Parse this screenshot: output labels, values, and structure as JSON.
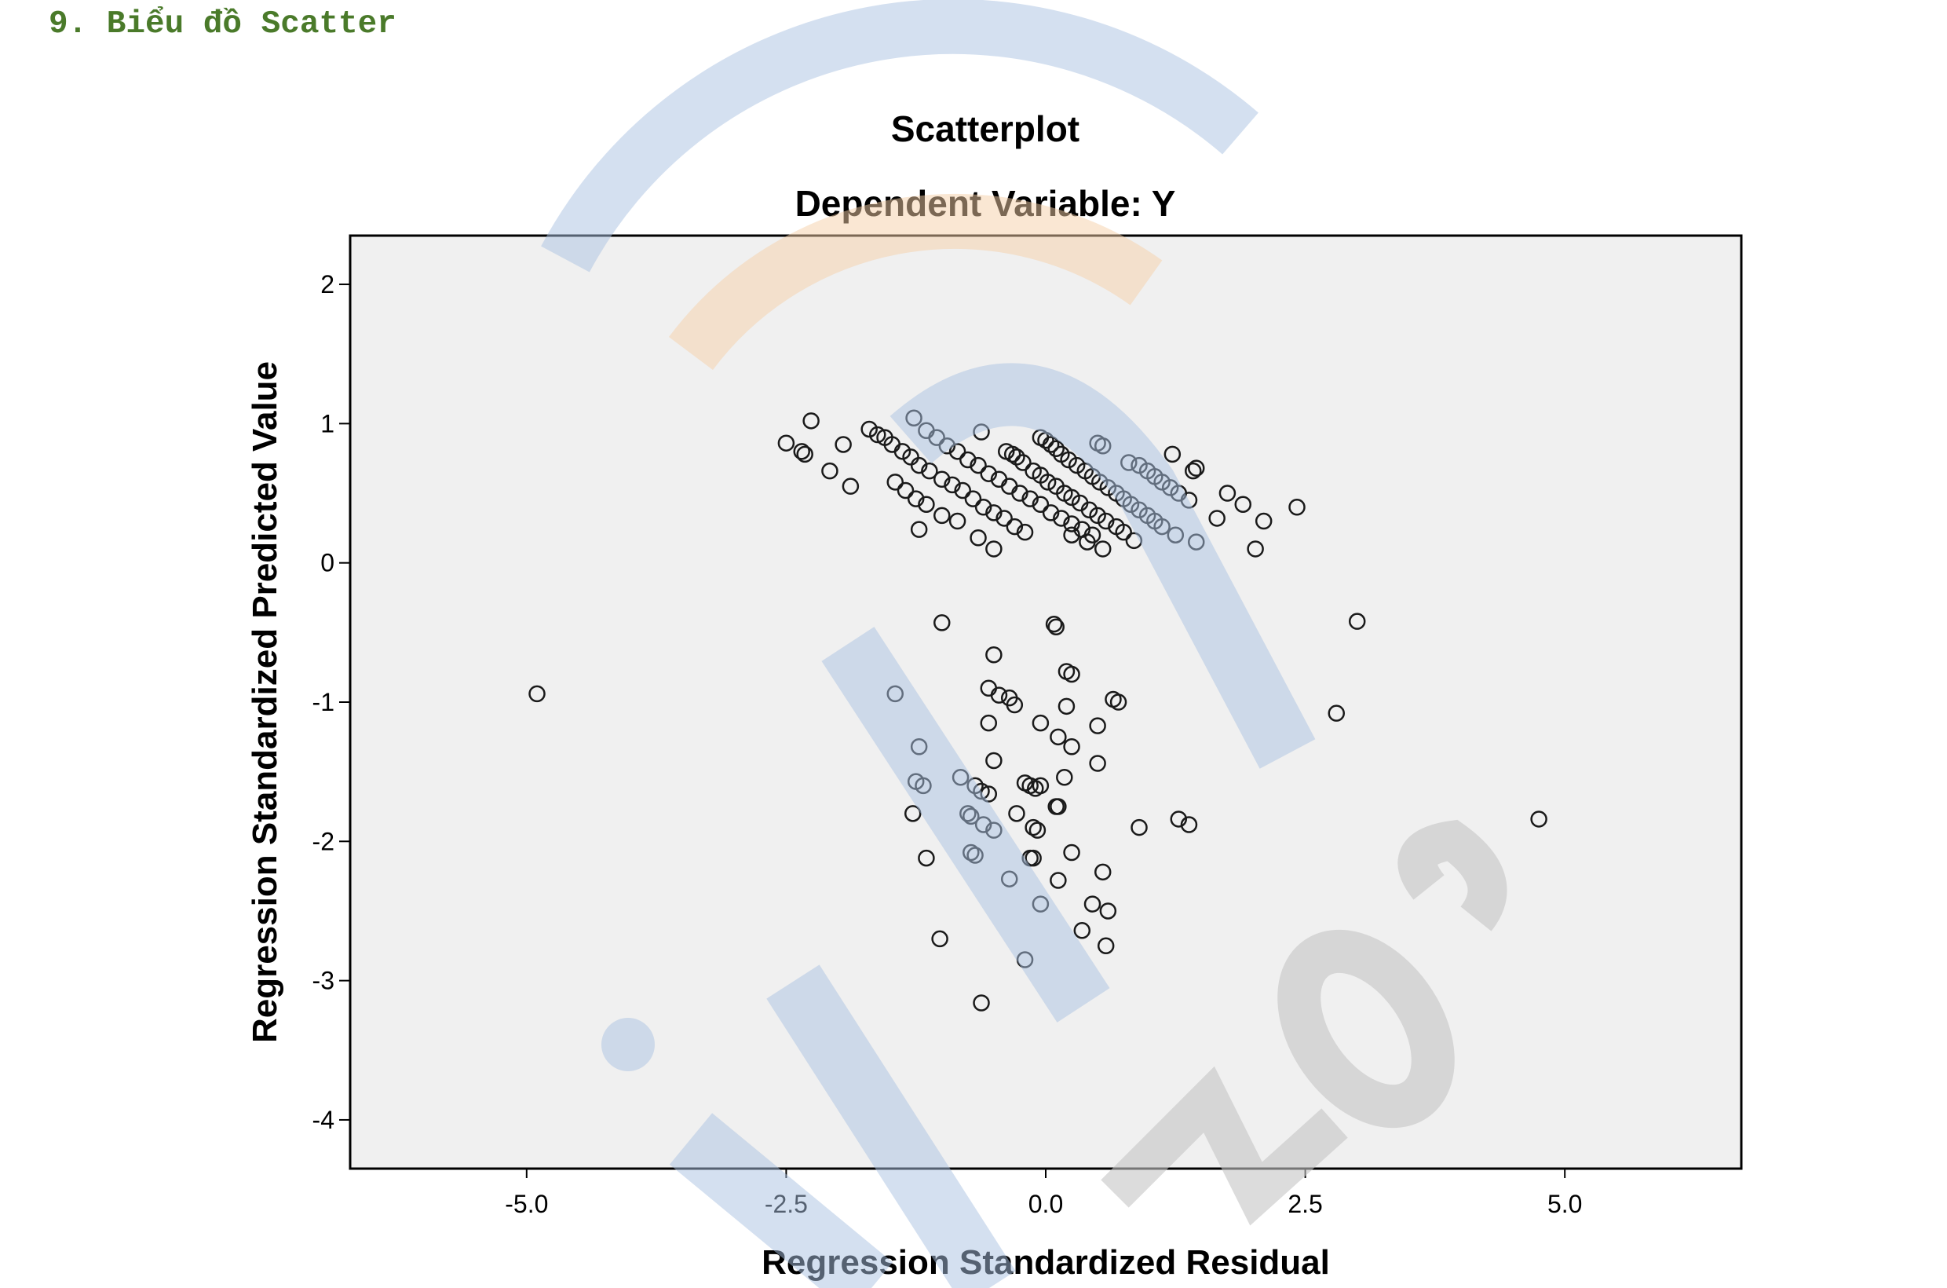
{
  "heading": "9. Biểu đồ Scatter",
  "chart_data": {
    "type": "scatter",
    "title": "Scatterplot",
    "subtitle": "Dependent Variable: Y",
    "xlabel": "Regression Standardized Residual",
    "ylabel": "Regression Standardized Predicted Value",
    "xlim": [
      -6.7,
      6.7
    ],
    "ylim": [
      -4.35,
      2.35
    ],
    "x_ticks": [
      -5.0,
      -2.5,
      0.0,
      2.5,
      5.0
    ],
    "x_tick_labels": [
      "-5.0",
      "-2.5",
      "0.0",
      "2.5",
      "5.0"
    ],
    "y_ticks": [
      2,
      1,
      0,
      -1,
      -2,
      -3,
      -4
    ],
    "y_tick_labels": [
      "2",
      "1",
      "0",
      "-1",
      "-2",
      "-3",
      "-4"
    ],
    "grid": false,
    "legend": "none",
    "plot_background": "#f0f0f0",
    "marker_color": "#1a1a1a",
    "points": [
      [
        -2.26,
        1.02
      ],
      [
        -2.5,
        0.86
      ],
      [
        -2.35,
        0.8
      ],
      [
        -2.08,
        0.66
      ],
      [
        -1.88,
        0.55
      ],
      [
        -1.95,
        0.85
      ],
      [
        -2.32,
        0.78
      ],
      [
        -1.7,
        0.96
      ],
      [
        -1.62,
        0.92
      ],
      [
        -1.55,
        0.9
      ],
      [
        -1.48,
        0.85
      ],
      [
        -1.38,
        0.8
      ],
      [
        -1.3,
        0.76
      ],
      [
        -1.22,
        0.7
      ],
      [
        -1.12,
        0.66
      ],
      [
        -1.0,
        0.6
      ],
      [
        -0.9,
        0.56
      ],
      [
        -0.8,
        0.52
      ],
      [
        -0.7,
        0.46
      ],
      [
        -0.6,
        0.4
      ],
      [
        -0.5,
        0.36
      ],
      [
        -0.4,
        0.32
      ],
      [
        -0.3,
        0.26
      ],
      [
        -0.2,
        0.22
      ],
      [
        -1.27,
        1.04
      ],
      [
        -1.15,
        0.95
      ],
      [
        -1.05,
        0.9
      ],
      [
        -0.95,
        0.84
      ],
      [
        -0.85,
        0.8
      ],
      [
        -0.75,
        0.74
      ],
      [
        -0.65,
        0.7
      ],
      [
        -0.55,
        0.64
      ],
      [
        -0.45,
        0.6
      ],
      [
        -0.35,
        0.55
      ],
      [
        -0.25,
        0.5
      ],
      [
        -0.15,
        0.46
      ],
      [
        -0.05,
        0.42
      ],
      [
        0.05,
        0.36
      ],
      [
        0.15,
        0.32
      ],
      [
        0.25,
        0.28
      ],
      [
        0.35,
        0.24
      ],
      [
        0.45,
        0.2
      ],
      [
        -1.45,
        0.58
      ],
      [
        -1.35,
        0.52
      ],
      [
        -1.25,
        0.46
      ],
      [
        -1.22,
        0.24
      ],
      [
        -1.15,
        0.42
      ],
      [
        -1.0,
        0.34
      ],
      [
        -0.85,
        0.3
      ],
      [
        -0.65,
        0.18
      ],
      [
        -0.5,
        0.1
      ],
      [
        -0.62,
        0.94
      ],
      [
        -0.38,
        0.8
      ],
      [
        -0.32,
        0.78
      ],
      [
        -0.28,
        0.76
      ],
      [
        -0.22,
        0.72
      ],
      [
        -0.12,
        0.66
      ],
      [
        -0.05,
        0.63
      ],
      [
        0.02,
        0.58
      ],
      [
        0.1,
        0.55
      ],
      [
        0.18,
        0.5
      ],
      [
        0.25,
        0.47
      ],
      [
        0.33,
        0.43
      ],
      [
        0.42,
        0.38
      ],
      [
        0.5,
        0.34
      ],
      [
        0.58,
        0.3
      ],
      [
        0.68,
        0.26
      ],
      [
        0.75,
        0.22
      ],
      [
        0.85,
        0.16
      ],
      [
        -0.05,
        0.9
      ],
      [
        0.0,
        0.88
      ],
      [
        0.05,
        0.85
      ],
      [
        0.1,
        0.82
      ],
      [
        0.15,
        0.78
      ],
      [
        0.22,
        0.74
      ],
      [
        0.3,
        0.7
      ],
      [
        0.38,
        0.66
      ],
      [
        0.45,
        0.62
      ],
      [
        0.52,
        0.58
      ],
      [
        0.6,
        0.54
      ],
      [
        0.68,
        0.5
      ],
      [
        0.75,
        0.46
      ],
      [
        0.82,
        0.42
      ],
      [
        0.9,
        0.38
      ],
      [
        0.98,
        0.34
      ],
      [
        1.05,
        0.3
      ],
      [
        1.12,
        0.26
      ],
      [
        1.25,
        0.2
      ],
      [
        1.45,
        0.15
      ],
      [
        0.5,
        0.86
      ],
      [
        0.55,
        0.84
      ],
      [
        0.8,
        0.72
      ],
      [
        0.9,
        0.7
      ],
      [
        0.98,
        0.66
      ],
      [
        1.05,
        0.62
      ],
      [
        1.12,
        0.58
      ],
      [
        1.2,
        0.54
      ],
      [
        1.28,
        0.5
      ],
      [
        1.38,
        0.45
      ],
      [
        1.45,
        0.68
      ],
      [
        1.42,
        0.66
      ],
      [
        1.22,
        0.78
      ],
      [
        1.65,
        0.32
      ],
      [
        1.75,
        0.5
      ],
      [
        1.9,
        0.42
      ],
      [
        2.1,
        0.3
      ],
      [
        2.42,
        0.4
      ],
      [
        2.02,
        0.1
      ],
      [
        0.55,
        0.1
      ],
      [
        0.4,
        0.15
      ],
      [
        0.25,
        0.2
      ],
      [
        -4.9,
        -0.94
      ],
      [
        3.0,
        -0.42
      ],
      [
        2.8,
        -1.08
      ],
      [
        4.75,
        -1.84
      ],
      [
        -1.0,
        -0.43
      ],
      [
        0.08,
        -0.44
      ],
      [
        0.1,
        -0.46
      ],
      [
        -0.5,
        -0.66
      ],
      [
        -1.45,
        -0.94
      ],
      [
        -0.55,
        -0.9
      ],
      [
        -0.45,
        -0.95
      ],
      [
        -0.35,
        -0.97
      ],
      [
        -0.3,
        -1.02
      ],
      [
        0.2,
        -0.78
      ],
      [
        0.25,
        -0.8
      ],
      [
        0.65,
        -0.98
      ],
      [
        0.7,
        -1.0
      ],
      [
        0.2,
        -1.03
      ],
      [
        -0.55,
        -1.15
      ],
      [
        -0.05,
        -1.15
      ],
      [
        0.12,
        -1.25
      ],
      [
        0.25,
        -1.32
      ],
      [
        0.5,
        -1.17
      ],
      [
        -1.22,
        -1.32
      ],
      [
        -0.5,
        -1.42
      ],
      [
        0.5,
        -1.44
      ],
      [
        -1.25,
        -1.57
      ],
      [
        -1.18,
        -1.6
      ],
      [
        -0.82,
        -1.54
      ],
      [
        -0.68,
        -1.6
      ],
      [
        -0.62,
        -1.64
      ],
      [
        -0.55,
        -1.66
      ],
      [
        -0.2,
        -1.58
      ],
      [
        -0.15,
        -1.6
      ],
      [
        -0.1,
        -1.62
      ],
      [
        0.18,
        -1.54
      ],
      [
        -0.05,
        -1.6
      ],
      [
        -1.28,
        -1.8
      ],
      [
        -0.75,
        -1.8
      ],
      [
        -0.72,
        -1.82
      ],
      [
        -0.6,
        -1.88
      ],
      [
        -0.5,
        -1.92
      ],
      [
        -0.28,
        -1.8
      ],
      [
        -0.12,
        -1.9
      ],
      [
        -0.08,
        -1.92
      ],
      [
        0.1,
        -1.75
      ],
      [
        0.12,
        -1.75
      ],
      [
        0.9,
        -1.9
      ],
      [
        1.28,
        -1.84
      ],
      [
        1.38,
        -1.88
      ],
      [
        -1.15,
        -2.12
      ],
      [
        -0.72,
        -2.08
      ],
      [
        -0.68,
        -2.1
      ],
      [
        -0.15,
        -2.12
      ],
      [
        -0.12,
        -2.12
      ],
      [
        0.25,
        -2.08
      ],
      [
        0.55,
        -2.22
      ],
      [
        -0.35,
        -2.27
      ],
      [
        0.12,
        -2.28
      ],
      [
        -0.05,
        -2.45
      ],
      [
        0.45,
        -2.45
      ],
      [
        0.6,
        -2.5
      ],
      [
        0.35,
        -2.64
      ],
      [
        0.58,
        -2.75
      ],
      [
        -1.02,
        -2.7
      ],
      [
        -0.2,
        -2.85
      ],
      [
        -0.62,
        -3.16
      ]
    ]
  },
  "colors": {
    "heading": "#4a7a2a",
    "watermark_blue": "#a9c2e2",
    "watermark_orange": "#f5cfa8",
    "watermark_gray": "#c4c4c4"
  }
}
